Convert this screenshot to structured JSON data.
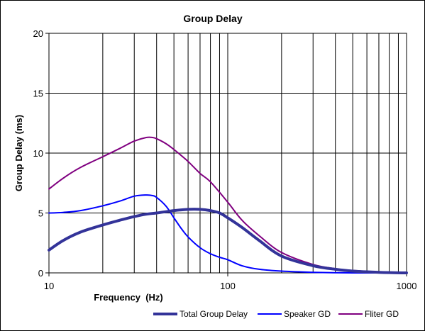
{
  "chart_data": {
    "type": "line",
    "title": "Group Delay",
    "xlabel": "Frequency  (Hz)",
    "ylabel": "Group Delay (ms)",
    "x_scale": "log",
    "xlim": [
      10,
      1000
    ],
    "ylim": [
      0,
      20
    ],
    "grid": true,
    "legend_position": "bottom",
    "x_tick_labels": [
      "10",
      "100",
      "1000"
    ],
    "x_ticks": [
      10,
      100,
      1000
    ],
    "y_tick_labels": [
      "0",
      "5",
      "10",
      "15",
      "20"
    ],
    "y_ticks": [
      0,
      5,
      10,
      15,
      20
    ],
    "series": [
      {
        "name": "Total Group Delay",
        "color": "#333399",
        "width": 4,
        "x": [
          10,
          12,
          15,
          20,
          25,
          30,
          35,
          40,
          50,
          60,
          70,
          80,
          90,
          100,
          120,
          150,
          200,
          300,
          400,
          500,
          700,
          1000
        ],
        "y": [
          1.9,
          2.7,
          3.4,
          4.0,
          4.4,
          4.7,
          4.9,
          5.0,
          5.2,
          5.3,
          5.3,
          5.2,
          5.0,
          4.6,
          3.8,
          2.7,
          1.4,
          0.6,
          0.3,
          0.15,
          0.05,
          0.0
        ]
      },
      {
        "name": "Speaker GD",
        "color": "#0000FF",
        "width": 2,
        "x": [
          10,
          12,
          15,
          20,
          25,
          30,
          35,
          38,
          40,
          45,
          50,
          55,
          60,
          70,
          80,
          90,
          100,
          120,
          150,
          200,
          300,
          500,
          1000
        ],
        "y": [
          5.0,
          5.05,
          5.2,
          5.6,
          6.0,
          6.4,
          6.5,
          6.45,
          6.3,
          5.6,
          4.6,
          3.7,
          3.0,
          2.1,
          1.6,
          1.3,
          1.1,
          0.6,
          0.3,
          0.15,
          0.05,
          0.0,
          0.0
        ]
      },
      {
        "name": "Fliter GD",
        "color": "#800080",
        "width": 2,
        "x": [
          10,
          12,
          15,
          20,
          25,
          30,
          35,
          38,
          40,
          45,
          50,
          60,
          70,
          80,
          100,
          120,
          150,
          200,
          300,
          400,
          500,
          700,
          1000
        ],
        "y": [
          7.0,
          7.9,
          8.8,
          9.7,
          10.4,
          11.0,
          11.3,
          11.3,
          11.2,
          10.8,
          10.3,
          9.3,
          8.3,
          7.6,
          5.9,
          4.4,
          3.1,
          1.7,
          0.7,
          0.35,
          0.2,
          0.08,
          0.0
        ]
      }
    ]
  }
}
